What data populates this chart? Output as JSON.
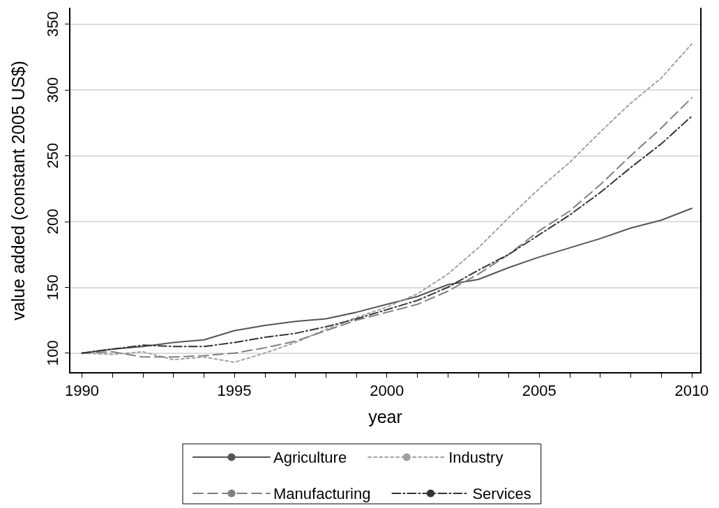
{
  "chart_data": {
    "type": "line",
    "xlabel": "year",
    "ylabel": "value added (constant 2005 US$)",
    "x": [
      1990,
      1991,
      1992,
      1993,
      1994,
      1995,
      1996,
      1997,
      1998,
      1999,
      2000,
      2001,
      2002,
      2003,
      2004,
      2005,
      2006,
      2007,
      2008,
      2009,
      2010
    ],
    "series": [
      {
        "name": "Agriculture",
        "color": "#555555",
        "line_style": "solid",
        "values": [
          100,
          103,
          105,
          108,
          110,
          117,
          121,
          124,
          126,
          131,
          137,
          143,
          152,
          156,
          165,
          173,
          180,
          187,
          195,
          201,
          210
        ]
      },
      {
        "name": "Industry",
        "color": "#a0a0a0",
        "line_style": "dotted",
        "values": [
          100,
          99,
          101,
          95,
          97,
          93,
          100,
          108,
          118,
          127,
          135,
          145,
          160,
          180,
          203,
          225,
          245,
          268,
          290,
          309,
          335
        ]
      },
      {
        "name": "Manufacturing",
        "color": "#808080",
        "line_style": "dashed",
        "values": [
          100,
          101,
          97,
          97,
          98,
          100,
          104,
          109,
          117,
          125,
          131,
          137,
          147,
          160,
          175,
          193,
          208,
          228,
          250,
          271,
          294
        ]
      },
      {
        "name": "Services",
        "color": "#333333",
        "line_style": "dashdot",
        "values": [
          100,
          103,
          106,
          105,
          105,
          108,
          112,
          115,
          120,
          126,
          133,
          140,
          150,
          163,
          175,
          190,
          205,
          222,
          241,
          259,
          280
        ]
      }
    ],
    "xlim": [
      1989.6,
      2010.3
    ],
    "xticks": [
      1990,
      {
        "value": 1991,
        "label": null
      },
      {
        "value": 1992,
        "label": null
      },
      {
        "value": 1993,
        "label": null
      },
      {
        "value": 1994,
        "label": null
      },
      1995,
      {
        "value": 1996,
        "label": null
      },
      {
        "value": 1997,
        "label": null
      },
      {
        "value": 1998,
        "label": null
      },
      {
        "value": 1999,
        "label": null
      },
      2000,
      {
        "value": 2001,
        "label": null
      },
      {
        "value": 2002,
        "label": null
      },
      {
        "value": 2003,
        "label": null
      },
      {
        "value": 2004,
        "label": null
      },
      2005,
      {
        "value": 2006,
        "label": null
      },
      {
        "value": 2007,
        "label": null
      },
      {
        "value": 2008,
        "label": null
      },
      {
        "value": 2009,
        "label": null
      },
      2010
    ],
    "ylim": [
      85,
      362
    ],
    "yticks": [
      100,
      150,
      200,
      250,
      300,
      350
    ],
    "grid": "y",
    "legend": "bottom",
    "marker": "none"
  }
}
